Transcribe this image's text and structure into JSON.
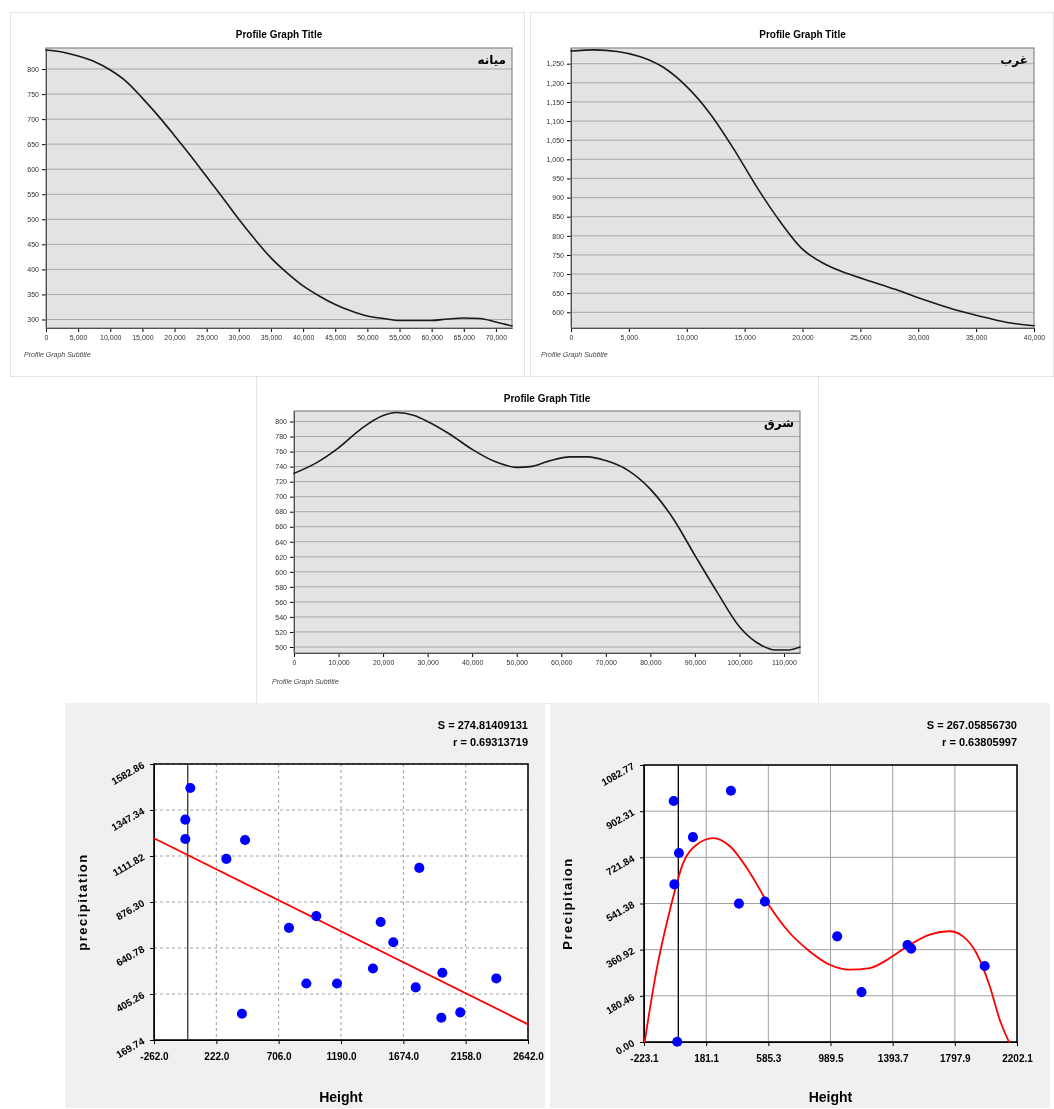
{
  "chart_data": [
    {
      "type": "line",
      "title": "Profile Graph Title",
      "subtitle": "Profile Graph Subtitle",
      "annotations": [
        "میانه"
      ],
      "grid": "y",
      "xlim": [
        0,
        72500
      ],
      "ylim": [
        283,
        842
      ],
      "xticks": [
        0,
        {
          "value": 5000,
          "label": "5,000"
        },
        {
          "value": 10000,
          "label": "10,000"
        },
        {
          "value": 15000,
          "label": "15,000"
        },
        {
          "value": 20000,
          "label": "20,000"
        },
        {
          "value": 25000,
          "label": "25,000"
        },
        {
          "value": 30000,
          "label": "30,000"
        },
        {
          "value": 35000,
          "label": "35,000"
        },
        {
          "value": 40000,
          "label": "40,000"
        },
        {
          "value": 45000,
          "label": "45,000"
        },
        {
          "value": 50000,
          "label": "50,000"
        },
        {
          "value": 55000,
          "label": "55,000"
        },
        {
          "value": 60000,
          "label": "60,000"
        },
        {
          "value": 65000,
          "label": "65,000"
        },
        {
          "value": 70000,
          "label": "70,000"
        }
      ],
      "yticks": [
        300,
        350,
        400,
        450,
        500,
        550,
        600,
        650,
        700,
        750,
        800
      ],
      "series": [
        {
          "color": "#1a1a1a",
          "x": [
            0,
            2500,
            5000,
            7500,
            10000,
            12500,
            15000,
            17500,
            20000,
            22500,
            25000,
            27500,
            30000,
            32500,
            35000,
            37500,
            40000,
            42500,
            45000,
            47500,
            50000,
            52500,
            55000,
            57500,
            60000,
            62500,
            65000,
            67500,
            70000,
            72500
          ],
          "values": [
            838,
            834,
            826,
            815,
            798,
            775,
            742,
            706,
            667,
            627,
            585,
            543,
            500,
            460,
            423,
            393,
            367,
            347,
            330,
            317,
            307,
            302,
            298,
            298,
            298,
            301,
            303,
            302,
            295,
            287
          ]
        }
      ]
    },
    {
      "type": "line",
      "title": "Profile Graph Title",
      "subtitle": "Profile Graph Subtitle",
      "annotations": [
        "غرب"
      ],
      "grid": "y",
      "xlim": [
        0,
        40000
      ],
      "ylim": [
        559,
        1291
      ],
      "xticks": [
        0,
        {
          "value": 5000,
          "label": "5,000"
        },
        {
          "value": 10000,
          "label": "10,000"
        },
        {
          "value": 15000,
          "label": "15,000"
        },
        {
          "value": 20000,
          "label": "20,000"
        },
        {
          "value": 25000,
          "label": "25,000"
        },
        {
          "value": 30000,
          "label": "30,000"
        },
        {
          "value": 35000,
          "label": "35,000"
        },
        {
          "value": 40000,
          "label": "40,000"
        }
      ],
      "yticks": [
        600,
        650,
        700,
        750,
        800,
        850,
        900,
        950,
        {
          "value": 1000,
          "label": "1,000"
        },
        {
          "value": 1050,
          "label": "1,050"
        },
        {
          "value": 1100,
          "label": "1,100"
        },
        {
          "value": 1150,
          "label": "1,150"
        },
        {
          "value": 1200,
          "label": "1,200"
        },
        {
          "value": 1250,
          "label": "1,250"
        }
      ],
      "series": [
        {
          "color": "#1a1a1a",
          "x": [
            0,
            2000,
            4000,
            6000,
            8000,
            10000,
            12000,
            14000,
            16000,
            18000,
            20000,
            22000,
            24000,
            26000,
            28000,
            30000,
            32000,
            34000,
            36000,
            38000,
            40000
          ],
          "values": [
            1283,
            1286,
            1282,
            1268,
            1240,
            1190,
            1120,
            1030,
            930,
            840,
            765,
            725,
            700,
            680,
            660,
            638,
            618,
            600,
            585,
            572,
            565
          ]
        }
      ]
    },
    {
      "type": "line",
      "title": "Profile Graph Title",
      "subtitle": "Profile Graph Subtitle",
      "annotations": [
        "شرق"
      ],
      "grid": "y",
      "xlim": [
        0,
        113600
      ],
      "ylim": [
        492,
        814
      ],
      "xticks": [
        0,
        {
          "value": 10000,
          "label": "10,000"
        },
        {
          "value": 20000,
          "label": "20,000"
        },
        {
          "value": 30000,
          "label": "30,000"
        },
        {
          "value": 40000,
          "label": "40,000"
        },
        {
          "value": 50000,
          "label": "50,000"
        },
        {
          "value": 60000,
          "label": "60,000"
        },
        {
          "value": 70000,
          "label": "70,000"
        },
        {
          "value": 80000,
          "label": "80,000"
        },
        {
          "value": 90000,
          "label": "90,000"
        },
        {
          "value": 100000,
          "label": "100,000"
        },
        {
          "value": 110000,
          "label": "110,000"
        }
      ],
      "yticks": [
        500,
        520,
        540,
        560,
        580,
        600,
        620,
        640,
        660,
        680,
        700,
        720,
        740,
        760,
        780,
        800
      ],
      "series": [
        {
          "color": "#1a1a1a",
          "x": [
            0,
            5000,
            10000,
            15000,
            20000,
            23000,
            27000,
            30000,
            35000,
            40000,
            45000,
            50000,
            53000,
            57000,
            62000,
            66000,
            70000,
            75000,
            80000,
            85000,
            90000,
            95000,
            100000,
            105000,
            108000,
            111000,
            113600
          ],
          "values": [
            731,
            745,
            765,
            790,
            808,
            812,
            808,
            800,
            783,
            763,
            747,
            739,
            740,
            747,
            753,
            753,
            748,
            735,
            710,
            672,
            622,
            573,
            527,
            502,
            496,
            496,
            500
          ]
        }
      ]
    },
    {
      "type": "scatter",
      "xlabel": "Height",
      "ylabel": "precipitation",
      "annotations": [
        "S = 274.81409131",
        "r = 0.69313719"
      ],
      "grid": true,
      "xlim": [
        -262,
        2642
      ],
      "ylim": [
        169.74,
        1582.86
      ],
      "xticks": [
        {
          "value": -262,
          "label": "-262.0"
        },
        {
          "value": 222,
          "label": "222.0"
        },
        {
          "value": 706,
          "label": "706.0"
        },
        {
          "value": 1190,
          "label": "1190.0"
        },
        {
          "value": 1674,
          "label": "1674.0"
        },
        {
          "value": 2158,
          "label": "2158.0"
        },
        {
          "value": 2642,
          "label": "2642.0"
        }
      ],
      "yticks": [
        169.74,
        405.26,
        640.78,
        {
          "value": 876.3,
          "label": "876.30"
        },
        1111.82,
        1347.34,
        1582.86
      ],
      "ref_lines": [
        {
          "axis": "x",
          "value": 0,
          "color": "#333333"
        }
      ],
      "series": [
        {
          "marker": "circle",
          "color": "#0000ff",
          "x": [
            20,
            -19,
            -19,
            300,
            445,
            421,
            786,
            921,
            998,
            1159,
            1438,
            1498,
            1596,
            1770,
            1798,
            1977,
            1969,
            2116,
            2396
          ],
          "values": [
            1460,
            1298,
            1199,
            1097,
            1194,
            304,
            744,
            459,
            804,
            459,
            536,
            774,
            670,
            439,
            1051,
            514,
            284,
            311,
            485
          ]
        },
        {
          "type": "line",
          "color": "#ff0000",
          "x": [
            -262,
            2642
          ],
          "values": [
            1203,
            250
          ]
        }
      ]
    },
    {
      "type": "scatter",
      "xlabel": "Height",
      "ylabel": "Precipitaion",
      "annotations": [
        "S = 267.05856730",
        "r = 0.63805997"
      ],
      "grid": true,
      "xlim": [
        -223.1,
        2202.1
      ],
      "ylim": [
        0,
        1082.77
      ],
      "xticks": [
        -223.1,
        181.1,
        585.3,
        989.5,
        1393.7,
        1797.9,
        2202.1
      ],
      "yticks": [
        {
          "value": 0,
          "label": "0.00"
        },
        180.46,
        360.92,
        541.38,
        721.84,
        902.31,
        1082.77
      ],
      "ref_lines": [
        {
          "axis": "x",
          "value": 0,
          "color": "#000000"
        }
      ],
      "series": [
        {
          "marker": "circle",
          "color": "#0000ff",
          "x": [
            -30,
            4,
            -26,
            -7,
            95,
            342,
            394,
            563,
            1033,
            1191,
            1490,
            1514,
            1992
          ],
          "values": [
            942,
            739,
            616,
            1,
            801,
            982,
            541,
            549,
            413,
            195,
            379,
            365,
            297
          ]
        },
        {
          "type": "line",
          "color": "#ff0000",
          "x": [
            -219,
            -141,
            -54,
            32,
            119,
            227,
            336,
            466,
            595,
            725,
            855,
            985,
            1115,
            1245,
            1375,
            1505,
            1635,
            1764,
            1851,
            1938,
            2025,
            2090,
            2150
          ],
          "values": [
            0,
            283,
            517,
            700,
            771,
            797,
            765,
            661,
            530,
            426,
            354,
            302,
            283,
            289,
            328,
            380,
            420,
            433,
            413,
            348,
            218,
            87,
            0
          ]
        }
      ]
    }
  ]
}
